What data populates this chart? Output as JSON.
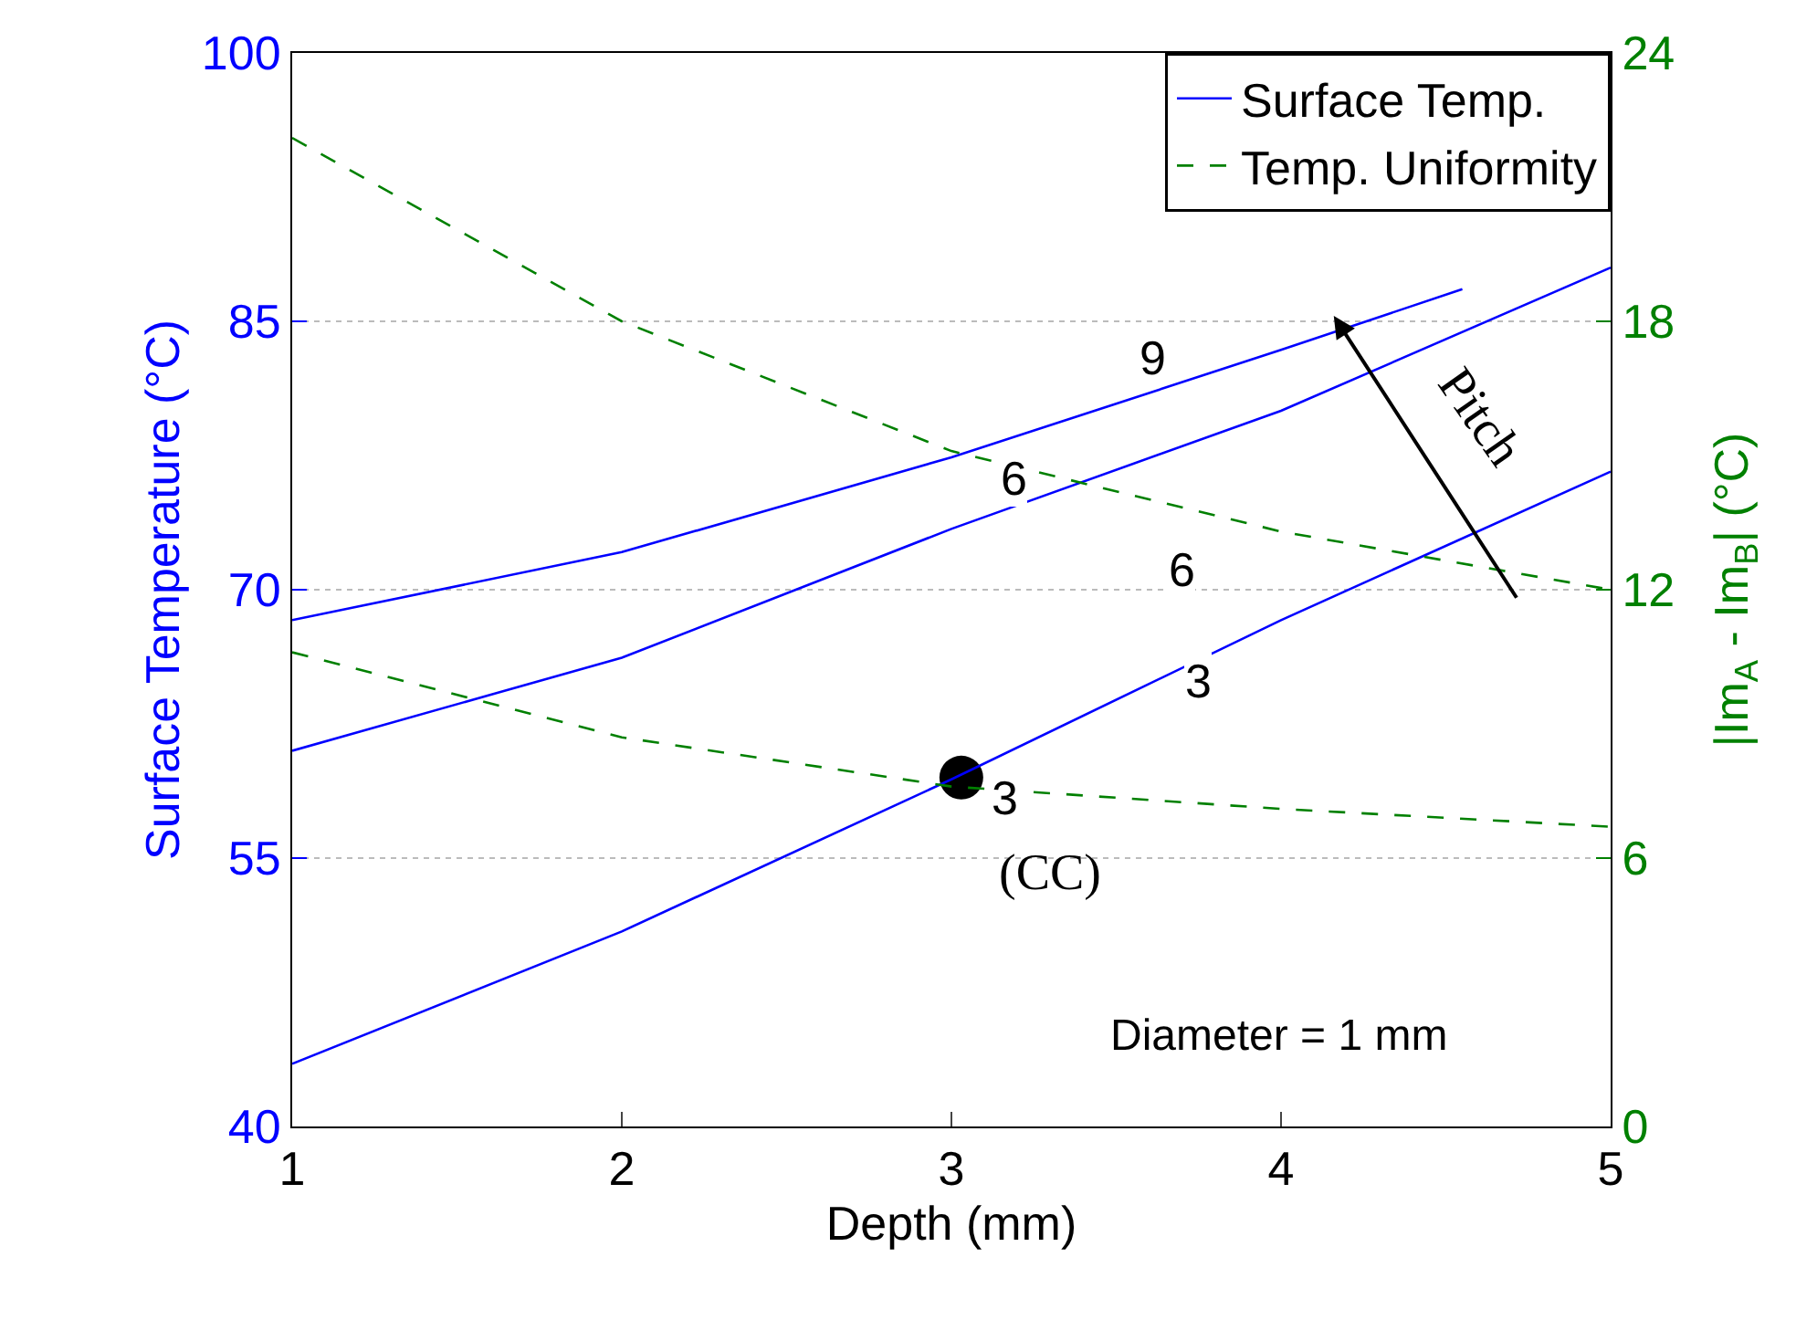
{
  "chart_data": {
    "type": "line",
    "xlabel": "Depth (mm)",
    "ylabel": "Surface Temperature (°C)",
    "y2label": "|Im$_{A}$ - Im$_{B}$| (°C)",
    "x": [
      1,
      2,
      3,
      4,
      5
    ],
    "xlim": [
      1,
      5
    ],
    "xticks": [
      1,
      2,
      3,
      4,
      5
    ],
    "ylim": [
      40,
      100
    ],
    "yticks": [
      40,
      55,
      70,
      85,
      100
    ],
    "y2lim": [
      0,
      24
    ],
    "y2ticks": [
      0,
      6,
      12,
      18,
      24
    ],
    "grid": "y",
    "legend": "top right",
    "series": [
      {
        "name": "Surface Temp.",
        "color": "#0000ff",
        "x": [
          1,
          2,
          3,
          4,
          4.55
        ],
        "values": [
          68.3,
          72.1,
          77.4,
          83.4,
          86.8
        ],
        "line_style": "solid"
      },
      {
        "color": "#0000ff",
        "values": [
          61.0,
          66.2,
          73.4,
          80.0,
          88.0
        ],
        "line_style": "solid"
      },
      {
        "color": "#0000ff",
        "values": [
          43.5,
          50.9,
          59.4,
          68.3,
          76.6
        ],
        "line_style": "solid"
      },
      {
        "name": "Temp. Uniformity",
        "color": "#008000",
        "axis": "y2",
        "values": [
          22.1,
          18.0,
          15.1,
          13.3,
          12.0
        ],
        "line_style": "dashed"
      },
      {
        "color": "#008000",
        "axis": "y2",
        "values": [
          10.6,
          8.7,
          7.6,
          7.1,
          6.7
        ],
        "line_style": "dashed"
      },
      {
        "type": "scatter",
        "color": "#000000",
        "marker": "circle",
        "x": [
          3.03
        ],
        "values": [
          59.5
        ]
      }
    ],
    "annotations": [
      {
        "text": "9",
        "x": 3.61,
        "y": 83.0
      },
      {
        "text": "6",
        "x": 3.19,
        "y": 76.2
      },
      {
        "text": "6",
        "x": 3.7,
        "y": 71.1
      },
      {
        "text": "3",
        "x": 3.75,
        "y": 64.9
      },
      {
        "text": "3",
        "x": 3.16,
        "y": 58.4
      },
      "(CC)",
      "Diameter = 1 mm",
      "Pitch"
    ]
  }
}
